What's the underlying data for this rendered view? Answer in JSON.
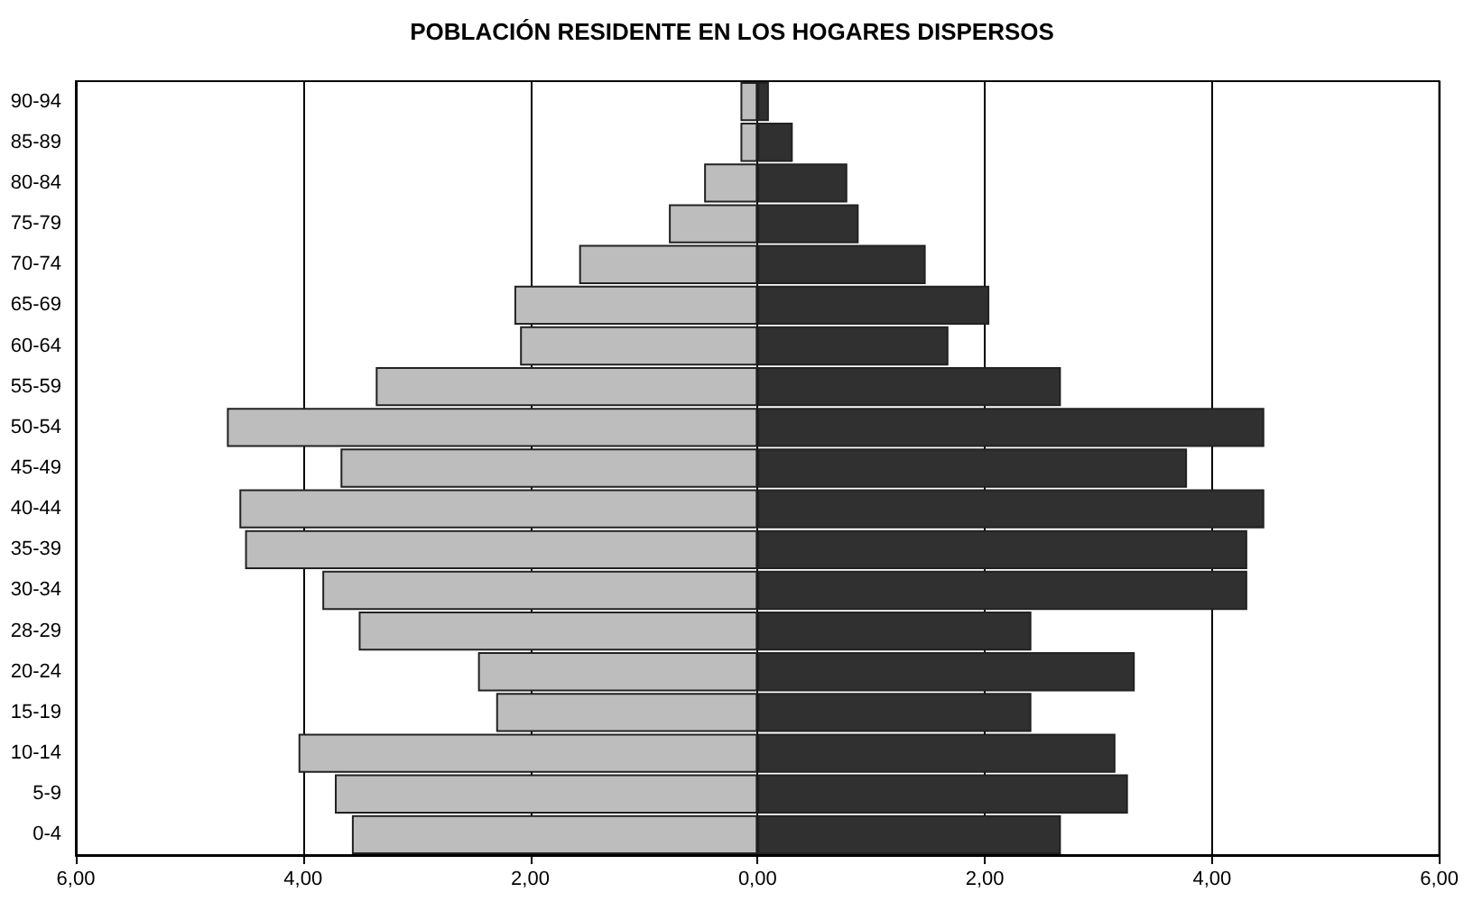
{
  "chart_data": {
    "type": "bar",
    "orientation": "horizontal",
    "stacked": true,
    "title": "POBLACIÓN RESIDENTE EN LOS HOGARES DISPERSOS",
    "categories": [
      "90-94",
      "85-89",
      "80-84",
      "75-79",
      "70-74",
      "65-69",
      "60-64",
      "55-59",
      "50-54",
      "45-49",
      "40-44",
      "35-39",
      "30-34",
      "28-29",
      "20-24",
      "15-19",
      "10-14",
      "5-9",
      "0-4"
    ],
    "series": [
      {
        "color": "#bdbdbd",
        "values": [
          -0.15,
          -0.15,
          -0.47,
          -0.78,
          -1.57,
          -2.14,
          -2.09,
          -3.36,
          -4.67,
          -3.67,
          -4.56,
          -4.51,
          -3.83,
          -3.51,
          -2.46,
          -2.3,
          -4.04,
          -3.72,
          -3.57
        ]
      },
      {
        "color": "#303030",
        "values": [
          0.1,
          0.31,
          0.79,
          0.89,
          1.48,
          2.04,
          1.68,
          2.67,
          4.46,
          3.78,
          4.46,
          4.31,
          4.31,
          2.41,
          3.32,
          2.41,
          3.15,
          3.26,
          2.67
        ]
      }
    ],
    "xlim": [
      -6,
      6
    ],
    "xticks": [
      {
        "value": -6,
        "label": "6,00"
      },
      {
        "value": -4,
        "label": "4,00"
      },
      {
        "value": -2,
        "label": "2,00"
      },
      {
        "value": 0,
        "label": "0,00"
      },
      {
        "value": 2,
        "label": "2,00"
      },
      {
        "value": 4,
        "label": "4,00"
      },
      {
        "value": 6,
        "label": "6,00"
      }
    ],
    "grid": "x"
  }
}
